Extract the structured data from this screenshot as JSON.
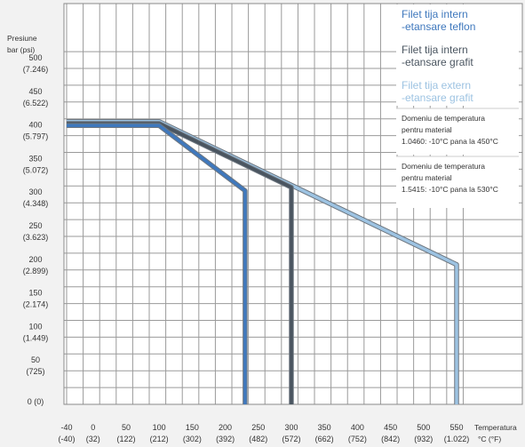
{
  "chart_data": {
    "type": "line",
    "y_axis_title": [
      "Presiune",
      "bar (psi)"
    ],
    "x_axis_title": [
      "Temperatura",
      "°C (°F)"
    ],
    "xlim": [
      -40,
      560
    ],
    "ylim": [
      0,
      500
    ],
    "grid": true,
    "x_ticks": [
      {
        "value": -40,
        "label": "-40",
        "sub": "(-40)"
      },
      {
        "value": 0,
        "label": "0",
        "sub": "(32)"
      },
      {
        "value": 50,
        "label": "50",
        "sub": "(122)"
      },
      {
        "value": 100,
        "label": "100",
        "sub": "(212)"
      },
      {
        "value": 150,
        "label": "150",
        "sub": "(302)"
      },
      {
        "value": 200,
        "label": "200",
        "sub": "(392)"
      },
      {
        "value": 250,
        "label": "250",
        "sub": "(482)"
      },
      {
        "value": 300,
        "label": "300",
        "sub": "(572)"
      },
      {
        "value": 350,
        "label": "350",
        "sub": "(662)"
      },
      {
        "value": 400,
        "label": "400",
        "sub": "(752)"
      },
      {
        "value": 450,
        "label": "450",
        "sub": "(842)"
      },
      {
        "value": 500,
        "label": "500",
        "sub": "(932)"
      },
      {
        "value": 550,
        "label": "550",
        "sub": "(1.022)"
      }
    ],
    "y_ticks": [
      {
        "value": 0,
        "label": "0 (0)"
      },
      {
        "value": 50,
        "label": "50",
        "sub": "(725)"
      },
      {
        "value": 100,
        "label": "100",
        "sub": "(1.449)"
      },
      {
        "value": 150,
        "label": "150",
        "sub": "(2.174)"
      },
      {
        "value": 200,
        "label": "200",
        "sub": "(2.899)"
      },
      {
        "value": 250,
        "label": "250",
        "sub": "(3.623)"
      },
      {
        "value": 300,
        "label": "300",
        "sub": "(4.348)"
      },
      {
        "value": 350,
        "label": "350",
        "sub": "(5.072)"
      },
      {
        "value": 400,
        "label": "400",
        "sub": "(5.797)"
      },
      {
        "value": 450,
        "label": "450",
        "sub": "(6.522)"
      },
      {
        "value": 500,
        "label": "500",
        "sub": "(7.246)"
      }
    ],
    "series": [
      {
        "name": "Filet tija intern -etansare teflon",
        "legend_lines": [
          "Filet tija intern",
          "-etansare teflon"
        ],
        "color": "#3f78bd",
        "points": [
          [
            -40,
            415
          ],
          [
            100,
            415
          ],
          [
            230,
            318
          ],
          [
            230,
            0
          ]
        ]
      },
      {
        "name": "Filet tija intern -etansare grafit",
        "legend_lines": [
          "Filet tija intern",
          "-etansare grafit"
        ],
        "color": "#4a5560",
        "points": [
          [
            -40,
            418
          ],
          [
            100,
            418
          ],
          [
            300,
            323
          ],
          [
            300,
            0
          ]
        ]
      },
      {
        "name": "Filet tija extern -etansare grafit",
        "legend_lines": [
          "Filet tija extern",
          "-etansare grafit"
        ],
        "color": "#9dc3e2",
        "points": [
          [
            -40,
            421
          ],
          [
            100,
            421
          ],
          [
            550,
            208
          ],
          [
            550,
            0
          ]
        ]
      }
    ],
    "notes": [
      [
        "Domeniu de temperatura",
        "pentru material",
        "1.0460: -10°C pana la 450°C"
      ],
      [
        "Domeniu de temperatura",
        "pentru material",
        "1.5415: -10°C pana la 530°C"
      ]
    ]
  }
}
